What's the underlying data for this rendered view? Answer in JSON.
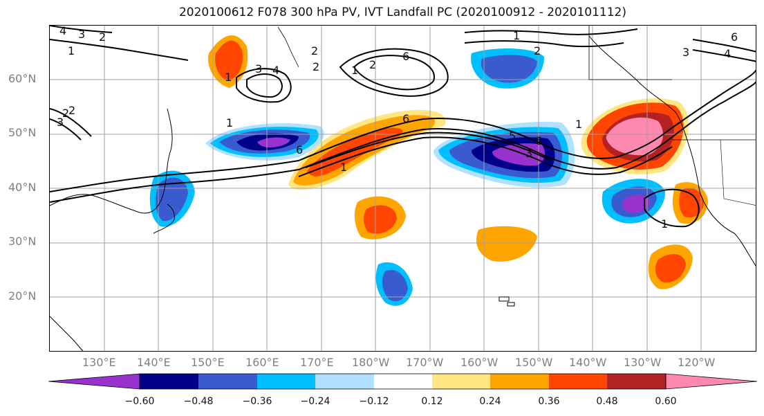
{
  "title": "2020100612 F078 300 hPa PV, IVT Landfall PC (2020100912 - 2020101112)",
  "map": {
    "lat_labels": [
      "60°N",
      "50°N",
      "40°N",
      "30°N",
      "20°N"
    ],
    "lon_labels": [
      "130°E",
      "140°E",
      "150°E",
      "160°E",
      "170°E",
      "180°W",
      "170°W",
      "160°W",
      "150°W",
      "140°W",
      "130°W",
      "120°W"
    ],
    "contour_labels": [
      "4",
      "3",
      "2",
      "1",
      "2",
      "1",
      "2",
      "1",
      "2",
      "3",
      "4",
      "6",
      "3",
      "2",
      "1",
      "6",
      "6",
      "1",
      "4",
      "3",
      "2",
      "1",
      "5",
      "6",
      "1",
      "1",
      "3",
      "6",
      "2"
    ]
  },
  "colorbar": {
    "ticks": [
      "−0.60",
      "−0.48",
      "−0.36",
      "−0.24",
      "−0.12",
      "0.12",
      "0.24",
      "0.36",
      "0.48",
      "0.60"
    ],
    "colors": [
      "#9932cc",
      "#00008b",
      "#3a5bd0",
      "#00bfff",
      "#b0e2ff",
      "#ffffff",
      "#ffe680",
      "#ffa500",
      "#ff4500",
      "#b22222",
      "#ff88b0"
    ]
  }
}
